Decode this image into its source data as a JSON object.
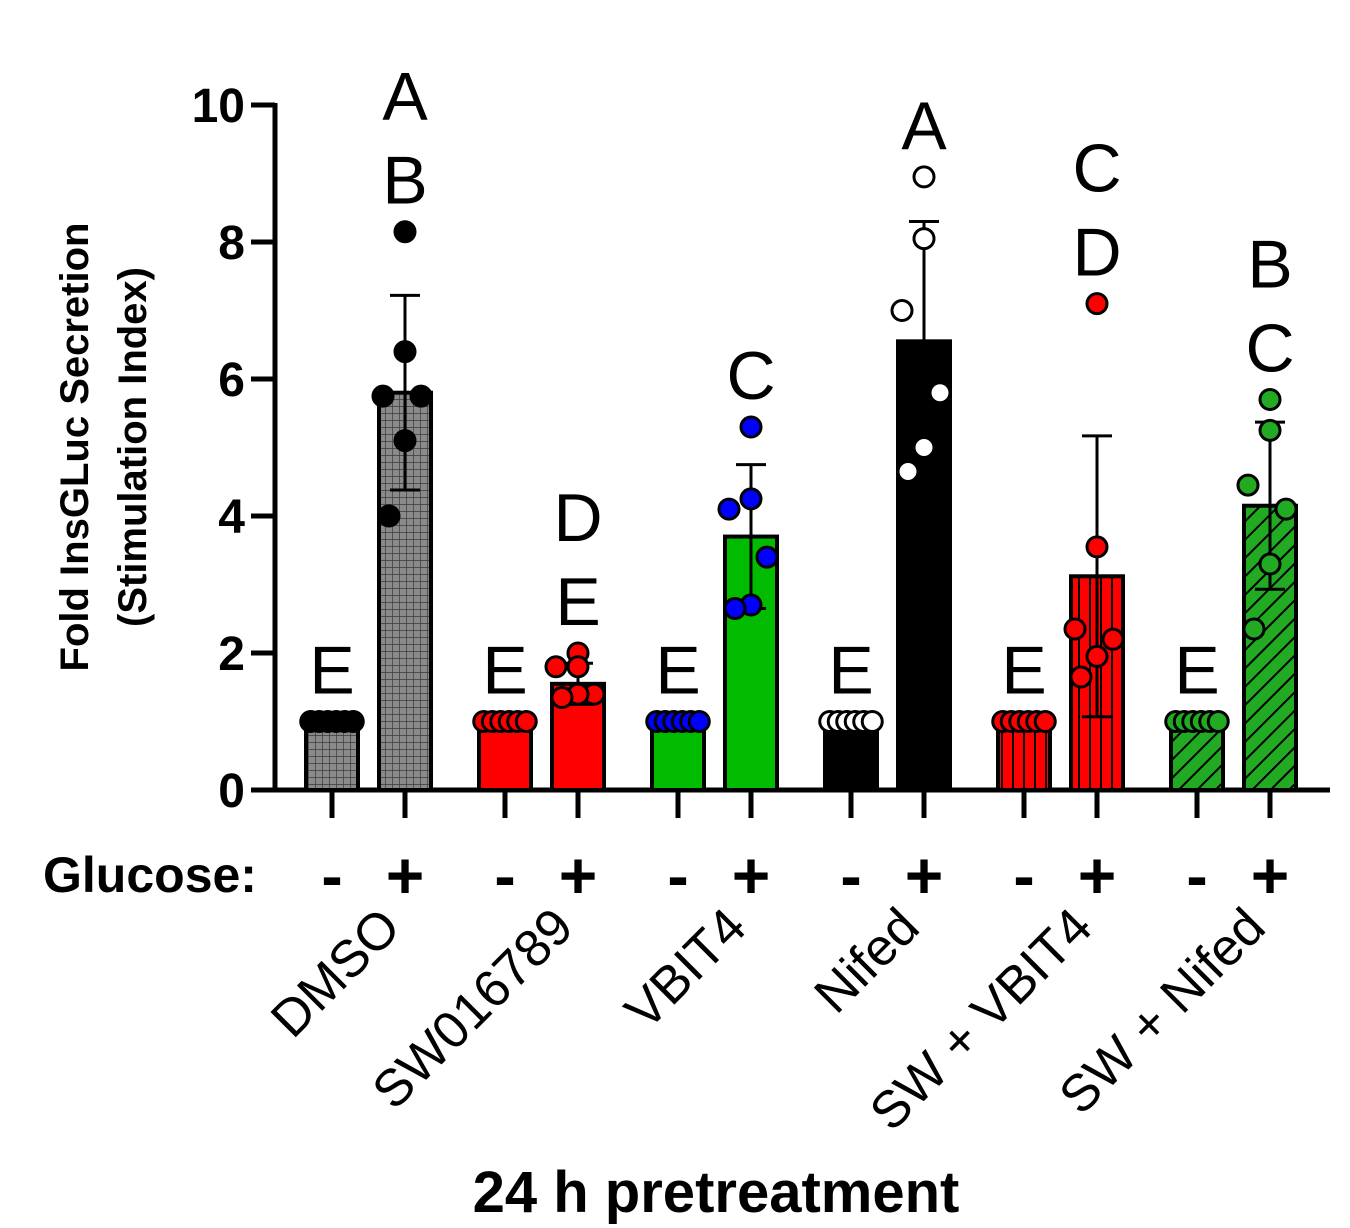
{
  "chart_data": {
    "type": "bar",
    "title": "",
    "ylabel_line1": "Fold InsGLuc Secretion",
    "ylabel_line2": "(Stimulation Index)",
    "xlabel": "24 h pretreatment",
    "glucose_label": "Glucose:",
    "glucose_minus": "-",
    "glucose_plus": "+",
    "ylim": [
      0,
      10
    ],
    "yticks": [
      "0",
      "2",
      "4",
      "6",
      "8",
      "10"
    ],
    "groups": [
      {
        "name": "DMSO",
        "color": "#808080",
        "pattern": "grid",
        "minus": {
          "value": 1.0,
          "points": [
            1,
            1,
            1,
            1,
            1,
            1
          ],
          "point_color": "#000000",
          "letters": [
            "E"
          ]
        },
        "plus": {
          "value": 5.8,
          "error": 1.42,
          "points": [
            8.15,
            6.4,
            5.75,
            5.75,
            5.1,
            4.0
          ],
          "point_color": "#000000",
          "letters": [
            "A",
            "B"
          ]
        }
      },
      {
        "name": "SW016789",
        "color": "#ff0000",
        "pattern": "solid",
        "minus": {
          "value": 1.0,
          "points": [
            1,
            1,
            1,
            1,
            1,
            1
          ],
          "point_color": "#ff0000",
          "letters": [
            "E"
          ]
        },
        "plus": {
          "value": 1.55,
          "error": 0.3,
          "points": [
            2.0,
            1.8,
            1.8,
            1.4,
            1.4,
            1.35
          ],
          "point_color": "#ff0000",
          "letters": [
            "D",
            "E"
          ]
        }
      },
      {
        "name": "VBIT4",
        "color": "#00bb00",
        "pattern": "solid",
        "minus": {
          "value": 1.0,
          "points": [
            1,
            1,
            1,
            1,
            1,
            1
          ],
          "point_color": "#0000ff",
          "letters": [
            "E"
          ]
        },
        "plus": {
          "value": 3.7,
          "error": 1.05,
          "points": [
            5.3,
            4.25,
            4.1,
            3.4,
            2.7,
            2.65
          ],
          "point_color": "#0000ff",
          "letters": [
            "C"
          ]
        }
      },
      {
        "name": "Nifed",
        "color": "#000000",
        "pattern": "solid",
        "minus": {
          "value": 1.0,
          "points": [
            1,
            1,
            1,
            1,
            1,
            1
          ],
          "point_color": "#ffffff",
          "letters": [
            "E"
          ]
        },
        "plus": {
          "value": 6.55,
          "error": 1.75,
          "points": [
            8.95,
            8.05,
            7.0,
            5.8,
            5.0,
            4.65
          ],
          "point_color": "#ffffff",
          "letters": [
            "A"
          ]
        }
      },
      {
        "name": "SW + VBIT4",
        "color": "#ff0000",
        "pattern": "vstripe",
        "minus": {
          "value": 1.0,
          "points": [
            1,
            1,
            1,
            1,
            1,
            1
          ],
          "point_color": "#ff0000",
          "letters": [
            "E"
          ]
        },
        "plus": {
          "value": 3.12,
          "error": 2.05,
          "points": [
            7.1,
            3.55,
            2.35,
            2.2,
            1.95,
            1.65
          ],
          "point_color": "#ff0000",
          "letters": [
            "C",
            "D"
          ]
        }
      },
      {
        "name": "SW + Nifed",
        "color": "#22aa22",
        "pattern": "diag",
        "minus": {
          "value": 1.0,
          "points": [
            1,
            1,
            1,
            1,
            1,
            1
          ],
          "point_color": "#22aa22",
          "letters": [
            "E"
          ]
        },
        "plus": {
          "value": 4.15,
          "error": 1.22,
          "points": [
            5.7,
            5.25,
            4.45,
            4.1,
            3.3,
            2.35
          ],
          "point_color": "#22aa22",
          "letters": [
            "B",
            "C"
          ]
        }
      }
    ]
  }
}
